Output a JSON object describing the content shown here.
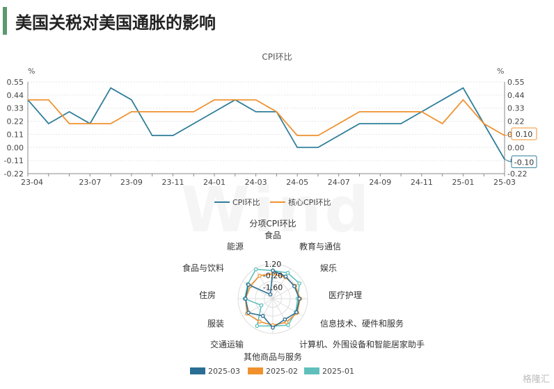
{
  "page": {
    "title": "美国关税对美国通胀的影响",
    "watermark": "Wind",
    "corner_logo": "格隆汇"
  },
  "colors": {
    "accent": "#5a9a6e",
    "cpi": "#2e7d9a",
    "core": "#f0912e",
    "radar_mar": "#2a6e94",
    "radar_feb": "#f0912e",
    "radar_jan": "#5fc0bb"
  },
  "chart_data": [
    {
      "type": "line",
      "title": "CPI环比",
      "yunit_left": "%",
      "yunit_right": "%",
      "ylim": [
        -0.22,
        0.55
      ],
      "yticks": [
        "0.55",
        "0.44",
        "0.33",
        "0.22",
        "0.11",
        "0.00",
        "-0.11",
        "-0.22"
      ],
      "ytick_values": [
        0.55,
        0.44,
        0.33,
        0.22,
        0.11,
        0,
        -0.11,
        -0.22
      ],
      "x": [
        "23-04",
        "23-05",
        "23-06",
        "23-07",
        "23-08",
        "23-09",
        "23-10",
        "23-11",
        "23-12",
        "24-01",
        "24-02",
        "24-03",
        "24-04",
        "24-05",
        "24-06",
        "24-07",
        "24-08",
        "24-09",
        "24-10",
        "24-11",
        "24-12",
        "25-01",
        "25-02",
        "25-03"
      ],
      "xtick_labels": [
        "23-04",
        "23-07",
        "23-09",
        "23-11",
        "24-01",
        "24-03",
        "24-05",
        "24-07",
        "24-09",
        "24-11",
        "25-01",
        "25-03"
      ],
      "xtick_index": [
        0,
        3,
        5,
        7,
        9,
        11,
        13,
        15,
        17,
        19,
        21,
        23
      ],
      "legend_position": "bottom",
      "series": [
        {
          "name": "CPI环比",
          "values": [
            0.4,
            0.2,
            0.3,
            0.2,
            0.5,
            0.4,
            0.1,
            0.1,
            0.2,
            0.3,
            0.4,
            0.3,
            0.3,
            0.0,
            0.0,
            0.1,
            0.2,
            0.2,
            0.2,
            0.3,
            0.4,
            0.5,
            0.2,
            -0.1
          ]
        },
        {
          "name": "核心CPI环比",
          "values": [
            0.4,
            0.4,
            0.2,
            0.2,
            0.2,
            0.3,
            0.3,
            0.3,
            0.3,
            0.4,
            0.4,
            0.4,
            0.3,
            0.1,
            0.1,
            0.2,
            0.3,
            0.3,
            0.3,
            0.3,
            0.2,
            0.4,
            0.2,
            0.1
          ]
        }
      ],
      "end_labels": [
        "-0.10",
        "0.10"
      ]
    },
    {
      "type": "radar",
      "title": "分项CPI环比",
      "rticks": [
        "1.20",
        "-0.20",
        "-1.60"
      ],
      "rtick_values": [
        1.2,
        -0.2,
        -1.6
      ],
      "rlim": [
        -3.0,
        1.2
      ],
      "axes": [
        "食品",
        "教育与通信",
        "娱乐",
        "医疗护理",
        "信息技术、硬件和服务",
        "计算机、外围设备和智能居家助手",
        "其他商品与服务",
        "交通运输",
        "服装",
        "住房",
        "食品与饮料",
        "能源"
      ],
      "legend_position": "bottom",
      "series": [
        {
          "name": "2025-03",
          "values": [
            0.4,
            0.1,
            0.0,
            0.2,
            0.3,
            -0.1,
            0.5,
            -0.6,
            0.4,
            0.3,
            0.4,
            -2.4
          ]
        },
        {
          "name": "2025-02",
          "values": [
            0.0,
            0.0,
            0.1,
            0.3,
            0.4,
            0.3,
            0.2,
            0.2,
            0.6,
            0.3,
            0.1,
            0.2
          ]
        },
        {
          "name": "2025-01",
          "values": [
            0.4,
            0.6,
            0.7,
            0.0,
            0.2,
            0.7,
            0.3,
            0.8,
            -1.4,
            0.4,
            0.5,
            1.1
          ]
        }
      ]
    }
  ]
}
